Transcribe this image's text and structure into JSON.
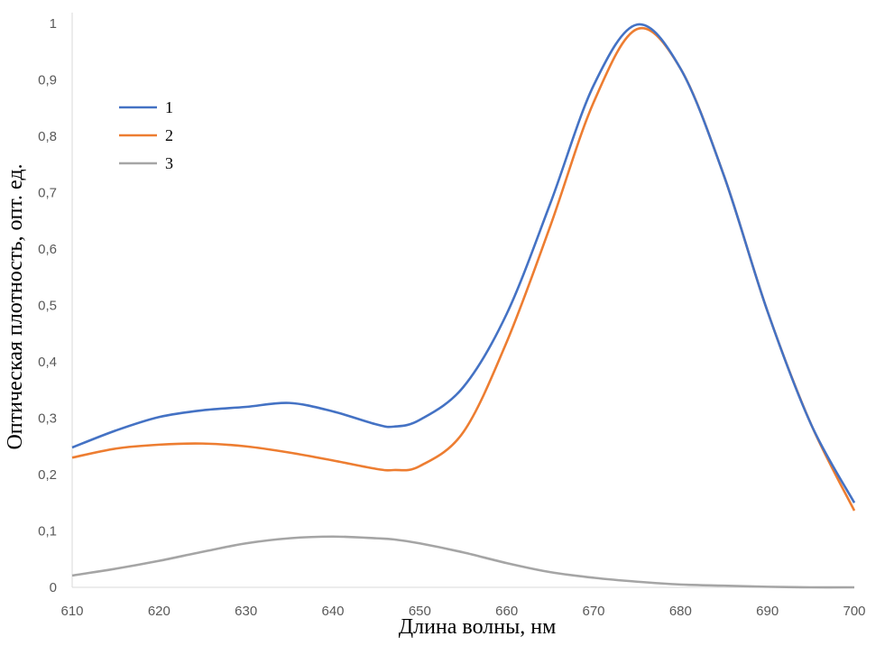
{
  "chart_data": {
    "type": "line",
    "xlabel": "Длина волны, нм",
    "ylabel": "Оптическая плотность, опт. ед.",
    "xlim": [
      610,
      700
    ],
    "ylim": [
      0,
      1
    ],
    "x_ticks": [
      "610",
      "620",
      "630",
      "640",
      "650",
      "660",
      "670",
      "680",
      "690",
      "700"
    ],
    "y_ticks": [
      "0",
      "0,1",
      "0,2",
      "0,3",
      "0,4",
      "0,5",
      "0,6",
      "0,7",
      "0,8",
      "0,9",
      "1"
    ],
    "grid": false,
    "legend_position": "top-left",
    "x": [
      610,
      615,
      620,
      625,
      630,
      635,
      640,
      645,
      647,
      650,
      655,
      660,
      665,
      670,
      675,
      680,
      685,
      690,
      695,
      700
    ],
    "series": [
      {
        "name": "1",
        "color": "#4472C4",
        "values": [
          0.248,
          0.278,
          0.302,
          0.314,
          0.32,
          0.327,
          0.312,
          0.289,
          0.285,
          0.297,
          0.355,
          0.485,
          0.68,
          0.89,
          0.998,
          0.92,
          0.73,
          0.49,
          0.29,
          0.15
        ]
      },
      {
        "name": "2",
        "color": "#ED7D31",
        "values": [
          0.23,
          0.246,
          0.253,
          0.255,
          0.25,
          0.239,
          0.225,
          0.21,
          0.208,
          0.215,
          0.275,
          0.435,
          0.64,
          0.86,
          0.99,
          0.92,
          0.73,
          0.49,
          0.29,
          0.136
        ]
      },
      {
        "name": "3",
        "color": "#A5A5A5",
        "values": [
          0.021,
          0.033,
          0.047,
          0.063,
          0.078,
          0.087,
          0.09,
          0.087,
          0.085,
          0.078,
          0.062,
          0.043,
          0.027,
          0.017,
          0.01,
          0.005,
          0.003,
          0.001,
          0.0,
          0.0
        ]
      }
    ]
  }
}
